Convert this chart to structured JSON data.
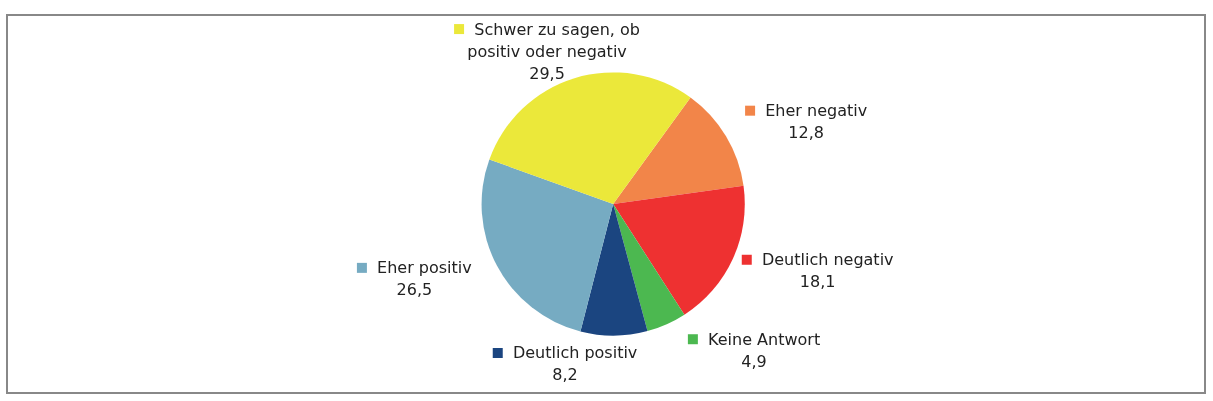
{
  "chart_data": {
    "type": "pie",
    "categories": [
      "Eher negativ",
      "Deutlich negativ",
      "Keine Antwort",
      "Deutlich positiv",
      "Eher positiv",
      "Schwer zu sagen, ob positiv oder negativ"
    ],
    "values": [
      12.8,
      18.1,
      4.9,
      8.2,
      26.5,
      29.5
    ],
    "value_labels": [
      "12,8",
      "18,1",
      "4,9",
      "8,2",
      "26,5",
      "29,5"
    ],
    "colors": [
      "#f28549",
      "#ee3131",
      "#4cb850",
      "#1b4580",
      "#76abc2",
      "#ebe83a"
    ],
    "legend": "top right"
  }
}
